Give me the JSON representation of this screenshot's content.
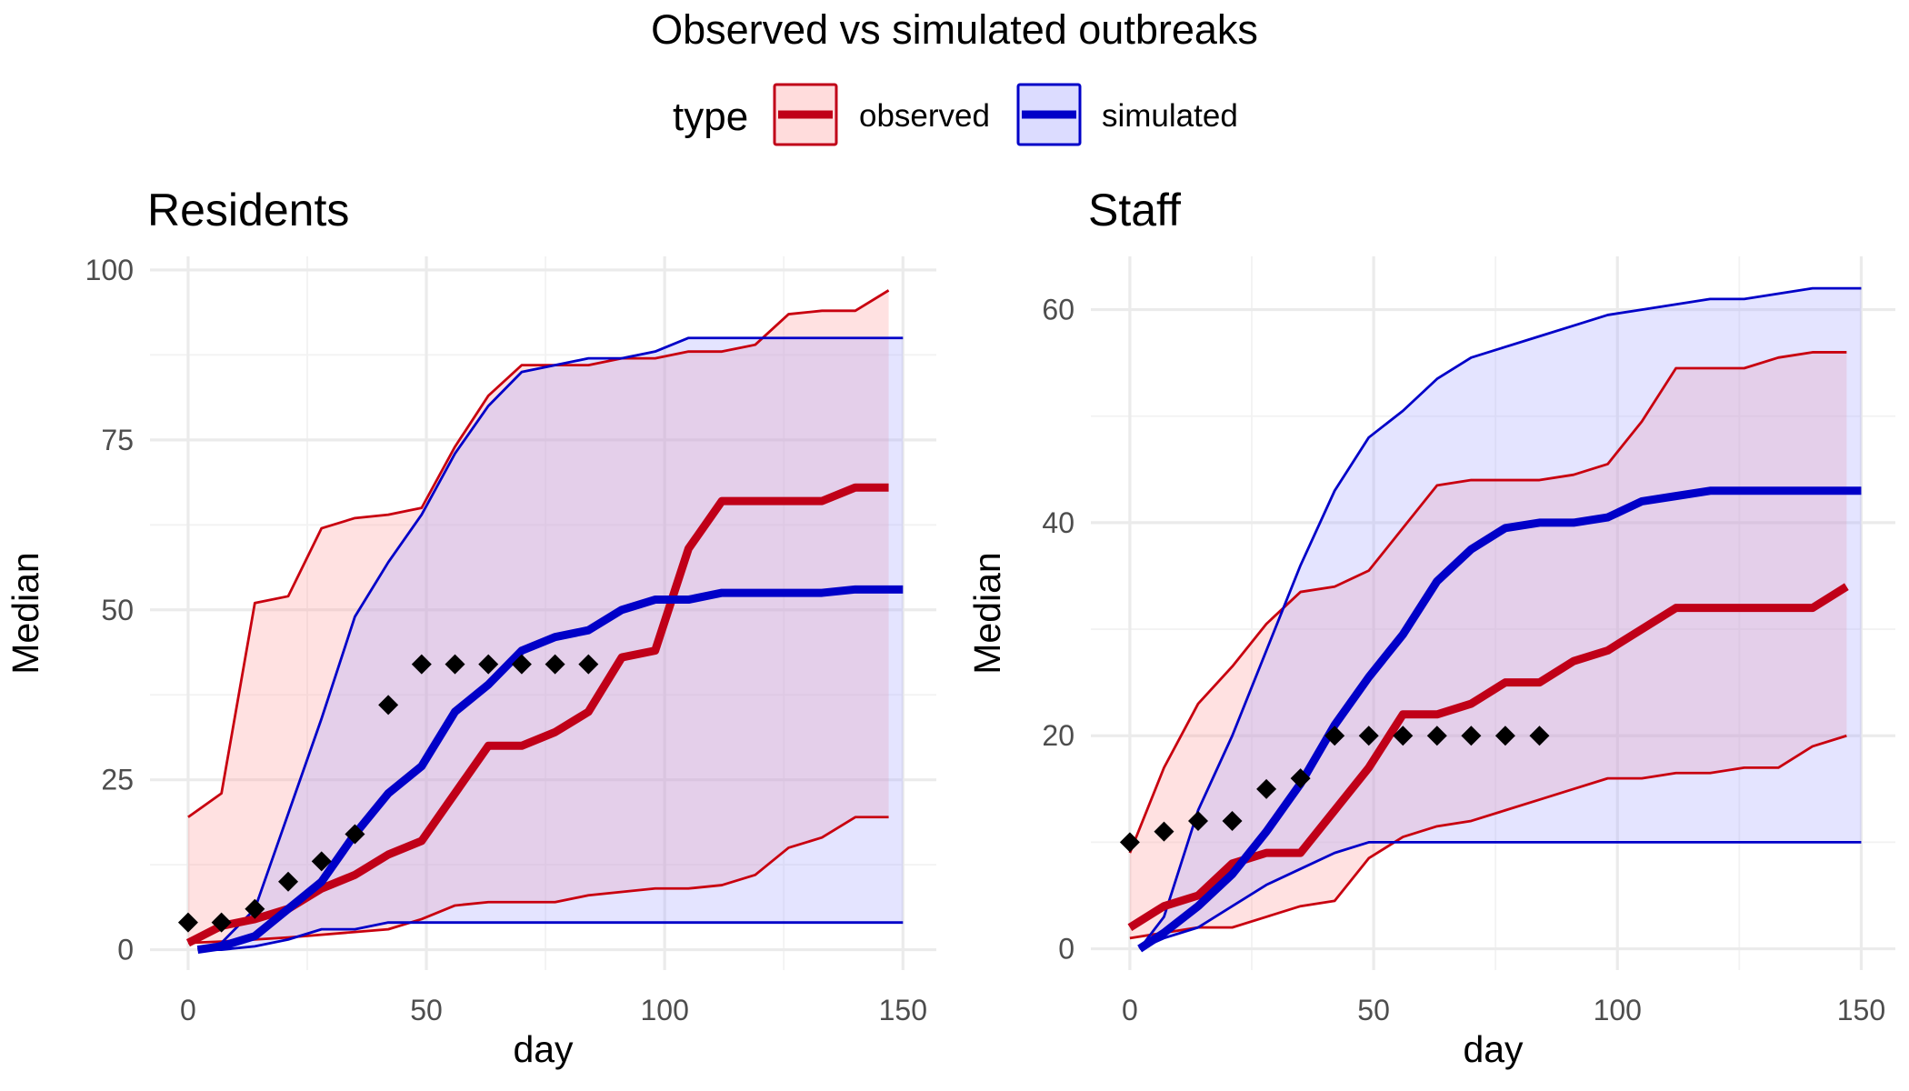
{
  "title": "Observed vs simulated outbreaks",
  "legend": {
    "title": "type",
    "entries": [
      {
        "label": "observed",
        "color": "#c00018",
        "fill": "#ffdcdc"
      },
      {
        "label": "simulated",
        "color": "#0000c8",
        "fill": "#dcdcff"
      }
    ]
  },
  "colors": {
    "observed_line": "#c00018",
    "observed_band_edge": "#c8000f",
    "observed_fill": "#ff9a9a",
    "simulated_line": "#0000c8",
    "simulated_fill": "#a6a6ff",
    "points": "#000000"
  },
  "chart_data": [
    {
      "type": "line",
      "title": "Residents",
      "xlabel": "day",
      "ylabel": "Median",
      "xlim": [
        -8,
        157
      ],
      "ylim": [
        -3,
        102
      ],
      "xticks": [
        0,
        50,
        100,
        150
      ],
      "yticks": [
        0,
        25,
        50,
        75,
        100
      ],
      "grid": true,
      "series": [
        {
          "name": "observed",
          "kind": "band",
          "x": [
            0,
            7,
            14,
            21,
            28,
            35,
            42,
            49,
            56,
            63,
            70,
            77,
            84,
            91,
            98,
            105,
            112,
            119,
            126,
            133,
            140,
            147
          ],
          "lower": [
            1,
            1.2,
            1.5,
            1.8,
            2.2,
            2.6,
            3,
            4.5,
            6.5,
            7,
            7,
            7,
            8,
            8.5,
            9,
            9,
            9.5,
            11,
            15,
            16.5,
            19.5,
            19.5
          ],
          "upper": [
            19.5,
            23,
            51,
            52,
            62,
            63.5,
            64,
            65,
            74,
            81.5,
            86,
            86,
            86,
            87,
            87,
            88,
            88,
            89,
            93.5,
            94,
            94,
            97
          ]
        },
        {
          "name": "simulated",
          "kind": "band",
          "x": [
            2,
            7,
            14,
            21,
            28,
            35,
            42,
            49,
            56,
            63,
            70,
            77,
            84,
            91,
            98,
            105,
            112,
            119,
            126,
            133,
            140,
            150
          ],
          "lower": [
            0,
            0,
            0.5,
            1.5,
            3,
            3,
            4,
            4,
            4,
            4,
            4,
            4,
            4,
            4,
            4,
            4,
            4,
            4,
            4,
            4,
            4,
            4
          ],
          "upper": [
            0,
            1,
            6,
            20,
            34,
            49,
            57,
            64,
            73,
            80,
            85,
            86,
            87,
            87,
            88,
            90,
            90,
            90,
            90,
            90,
            90,
            90
          ]
        },
        {
          "name": "observed",
          "kind": "median",
          "x": [
            0,
            7,
            14,
            21,
            28,
            35,
            42,
            49,
            56,
            63,
            70,
            77,
            84,
            91,
            98,
            105,
            112,
            119,
            126,
            133,
            140,
            147
          ],
          "values": [
            1,
            3.5,
            4.5,
            6,
            9,
            11,
            14,
            16,
            23,
            30,
            30,
            32,
            35,
            43,
            44,
            59,
            66,
            66,
            66,
            66,
            68,
            68
          ]
        },
        {
          "name": "simulated",
          "kind": "median",
          "x": [
            2,
            7,
            14,
            21,
            28,
            35,
            42,
            49,
            56,
            63,
            70,
            77,
            84,
            91,
            98,
            105,
            112,
            119,
            126,
            133,
            140,
            150
          ],
          "values": [
            0,
            0.5,
            2,
            6,
            10,
            17,
            23,
            27,
            35,
            39,
            44,
            46,
            47,
            50,
            51.5,
            51.5,
            52.5,
            52.5,
            52.5,
            52.5,
            53,
            53
          ]
        },
        {
          "name": "observed data",
          "kind": "points",
          "x": [
            0,
            7,
            14,
            21,
            28,
            35,
            42,
            49,
            56,
            63,
            70,
            77,
            84
          ],
          "values": [
            4,
            4,
            6,
            10,
            13,
            17,
            36,
            42,
            42,
            42,
            42,
            42,
            42
          ]
        }
      ]
    },
    {
      "type": "line",
      "title": "Staff",
      "xlabel": "day",
      "ylabel": "Median",
      "xlim": [
        -8,
        157
      ],
      "ylim": [
        -2,
        65
      ],
      "xticks": [
        0,
        50,
        100,
        150
      ],
      "yticks": [
        0,
        20,
        40,
        60
      ],
      "grid": true,
      "series": [
        {
          "name": "observed",
          "kind": "band",
          "x": [
            0,
            7,
            14,
            21,
            28,
            35,
            42,
            49,
            56,
            63,
            70,
            77,
            84,
            91,
            98,
            105,
            112,
            119,
            126,
            133,
            140,
            147
          ],
          "lower": [
            1,
            1.5,
            2,
            2,
            3,
            4,
            4.5,
            8.5,
            10.5,
            11.5,
            12,
            13,
            14,
            15,
            16,
            16,
            16.5,
            16.5,
            17,
            17,
            19,
            20
          ],
          "upper": [
            9,
            17,
            23,
            26.5,
            30.5,
            33.5,
            34,
            35.5,
            39.5,
            43.5,
            44,
            44,
            44,
            44.5,
            45.5,
            49.5,
            54.5,
            54.5,
            54.5,
            55.5,
            56,
            56
          ]
        },
        {
          "name": "simulated",
          "kind": "band",
          "x": [
            2,
            7,
            14,
            21,
            28,
            35,
            42,
            49,
            56,
            63,
            70,
            77,
            84,
            91,
            98,
            105,
            112,
            119,
            126,
            133,
            140,
            150
          ],
          "lower": [
            0,
            1,
            2,
            4,
            6,
            7.5,
            9,
            10,
            10,
            10,
            10,
            10,
            10,
            10,
            10,
            10,
            10,
            10,
            10,
            10,
            10,
            10
          ],
          "upper": [
            0,
            3,
            13,
            20,
            28,
            36,
            43,
            48,
            50.5,
            53.5,
            55.5,
            56.5,
            57.5,
            58.5,
            59.5,
            60,
            60.5,
            61,
            61,
            61.5,
            62,
            62
          ]
        },
        {
          "name": "observed",
          "kind": "median",
          "x": [
            0,
            7,
            14,
            21,
            28,
            35,
            42,
            49,
            56,
            63,
            70,
            77,
            84,
            91,
            98,
            105,
            112,
            119,
            126,
            133,
            140,
            147
          ],
          "values": [
            2,
            4,
            5,
            8,
            9,
            9,
            13,
            17,
            22,
            22,
            23,
            25,
            25,
            27,
            28,
            30,
            32,
            32,
            32,
            32,
            32,
            34
          ]
        },
        {
          "name": "simulated",
          "kind": "median",
          "x": [
            2,
            7,
            14,
            21,
            28,
            35,
            42,
            49,
            56,
            63,
            70,
            77,
            84,
            91,
            98,
            105,
            112,
            119,
            126,
            133,
            140,
            150
          ],
          "values": [
            0,
            1.5,
            4,
            7,
            11,
            15.5,
            21,
            25.5,
            29.5,
            34.5,
            37.5,
            39.5,
            40,
            40,
            40.5,
            42,
            42.5,
            43,
            43,
            43,
            43,
            43
          ]
        },
        {
          "name": "observed data",
          "kind": "points",
          "x": [
            0,
            7,
            14,
            21,
            28,
            35,
            42,
            49,
            56,
            63,
            70,
            77,
            84
          ],
          "values": [
            10,
            11,
            12,
            12,
            15,
            16,
            20,
            20,
            20,
            20,
            20,
            20,
            20
          ]
        }
      ]
    }
  ]
}
